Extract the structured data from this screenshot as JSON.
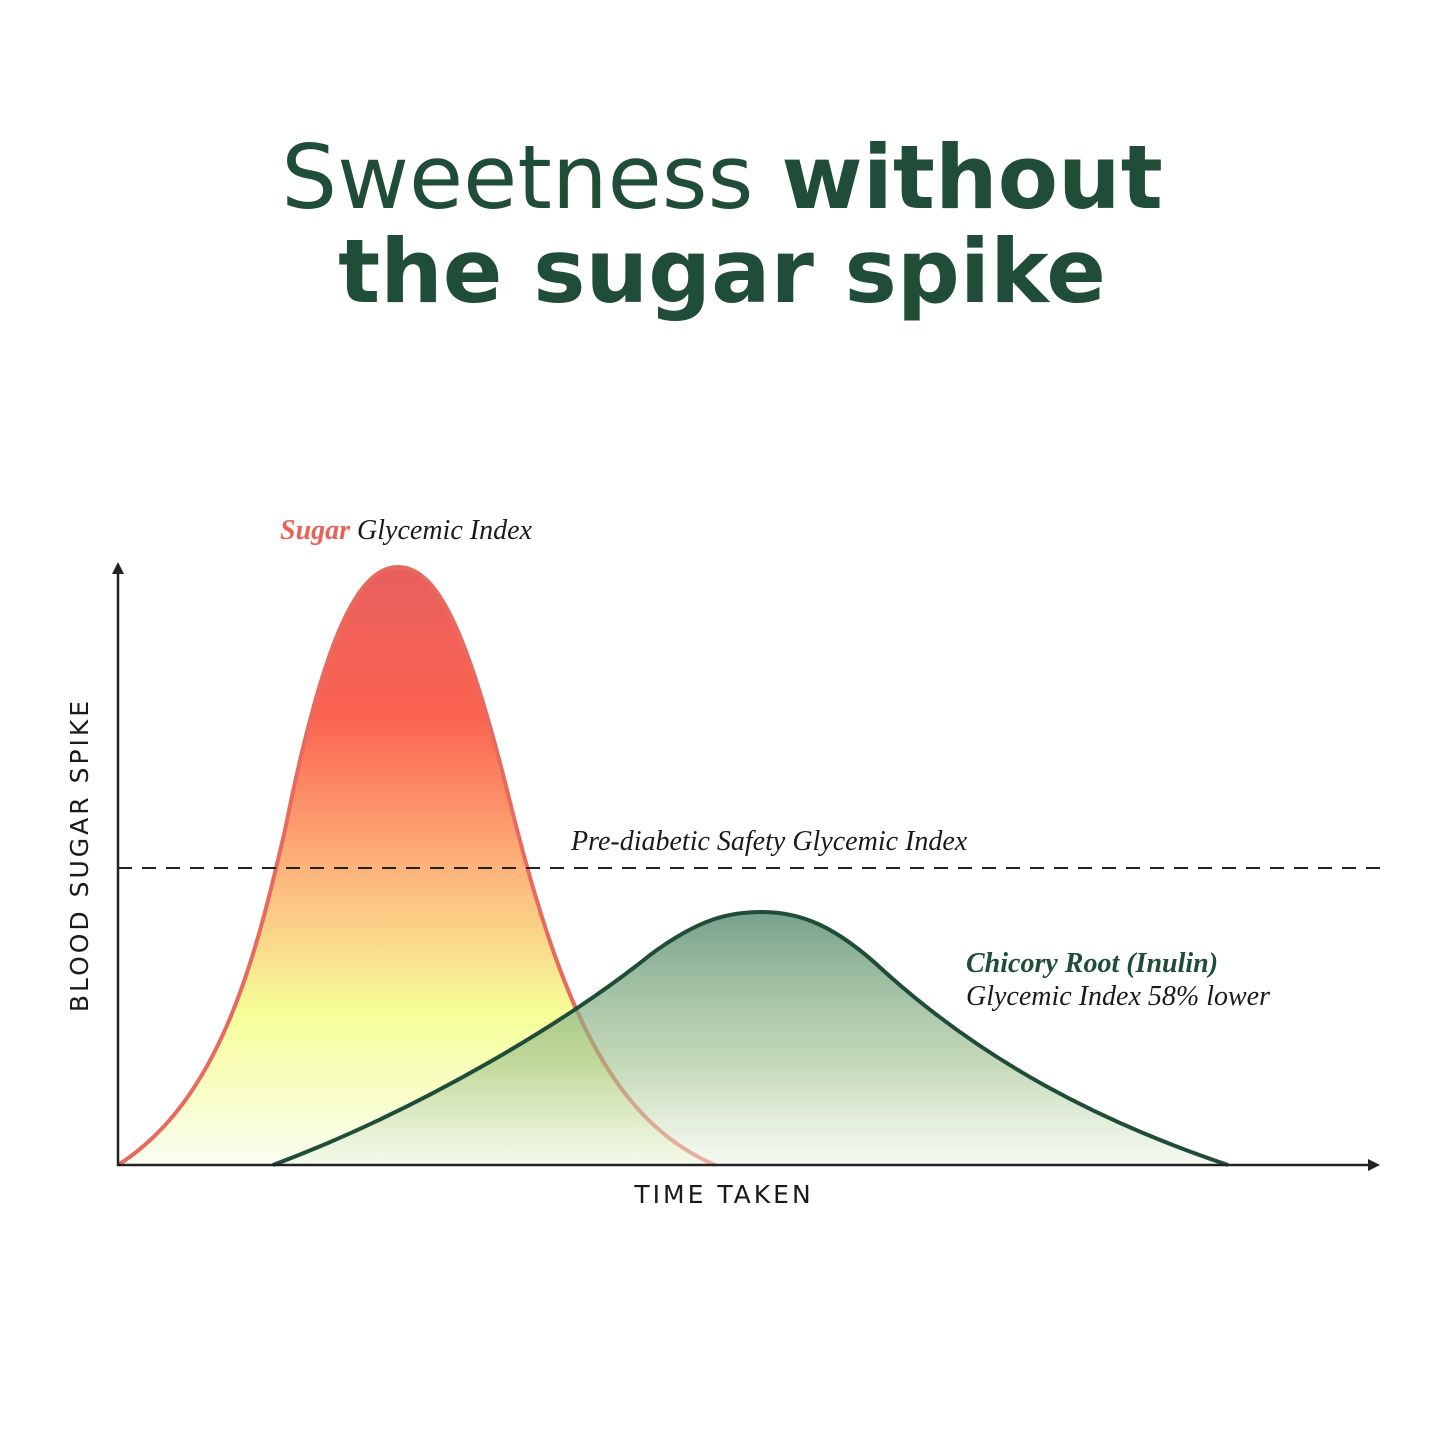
{
  "title": {
    "light": "Sweetness",
    "bold_line1": "without",
    "bold_line2": "the sugar spike"
  },
  "diagram": {
    "y_axis_label": "BLOOD SUGAR SPIKE",
    "x_axis_label": "TIME TAKEN",
    "sugar_label": {
      "highlight": "Sugar",
      "text": "Glycemic Index"
    },
    "threshold_label": "Pre-diabetic Safety Glycemic Index",
    "chicory_label": {
      "highlight": "Chicory Root (Inulin)",
      "text": "Glycemic Index 58% lower"
    }
  }
}
